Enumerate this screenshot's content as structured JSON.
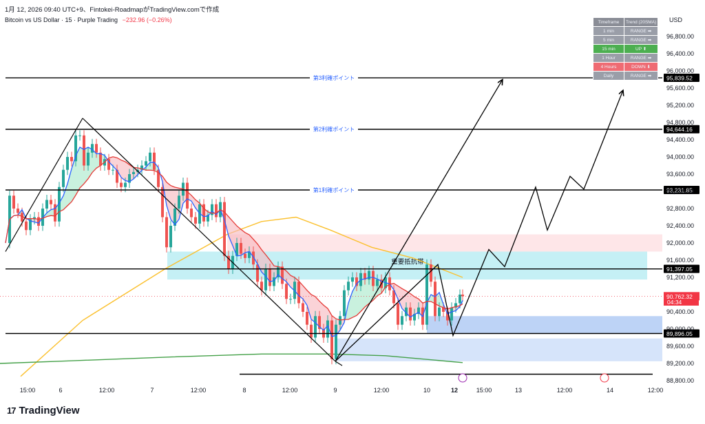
{
  "header": {
    "title": "1月 12, 2026 09:40 UTC+9、Fintokei-RoadmapがTradingView.comで作成",
    "symbol_line": "Bitcoin vs US Dollar · 15 · Purple Trading",
    "change": "−232.96 (−0.26%)",
    "currency": "USD"
  },
  "trend_table": {
    "headers": [
      "Timeframe",
      "Trend (20SMA)"
    ],
    "rows": [
      {
        "tf": "1 min",
        "trend": "RANGE ➡",
        "state": "range"
      },
      {
        "tf": "5 min",
        "trend": "RANGE ➡",
        "state": "range"
      },
      {
        "tf": "15 min",
        "trend": "UP ⬆",
        "state": "up"
      },
      {
        "tf": "1 Hour",
        "trend": "RANGE ➡",
        "state": "range"
      },
      {
        "tf": "4 Hours",
        "trend": "DOWN ⬇",
        "state": "down"
      },
      {
        "tf": "Daily",
        "trend": "RANGE ➡",
        "state": "range"
      }
    ]
  },
  "footer": {
    "brand": "TradingView",
    "brand_mark": "17"
  },
  "chart_data": {
    "type": "candlestick",
    "instrument": "Bitcoin vs US Dollar",
    "timeframe": "15",
    "ylim": [
      88800,
      97200
    ],
    "y_ticks": [
      88800,
      89200,
      89600,
      90000,
      90400,
      90800,
      91200,
      91600,
      92000,
      92400,
      92800,
      93200,
      93600,
      94000,
      94400,
      94800,
      95200,
      95600,
      96000,
      96400,
      96800
    ],
    "y_tick_labels": [
      "88,800.00",
      "89,200.00",
      "89,600.00",
      "90,000.00",
      "90,400.00",
      "90,800.00",
      "91,200.00",
      "91,600.00",
      "92,000.00",
      "92,400.00",
      "92,800.00",
      "93,200.00",
      "93,600.00",
      "94,000.00",
      "94,400.00",
      "94,800.00",
      "95,200.00",
      "95,600.00",
      "96,000.00",
      "96,400.00",
      "96,800.00"
    ],
    "x_ticks": [
      {
        "label": "15:00",
        "t": 40
      },
      {
        "label": "6",
        "t": 88
      },
      {
        "label": "12:00",
        "t": 155
      },
      {
        "label": "7",
        "t": 221
      },
      {
        "label": "12:00",
        "t": 288
      },
      {
        "label": "8",
        "t": 355
      },
      {
        "label": "12:00",
        "t": 421
      },
      {
        "label": "9",
        "t": 487
      },
      {
        "label": "12:00",
        "t": 554
      },
      {
        "label": "10",
        "t": 620
      },
      {
        "label": "12",
        "t": 660,
        "bold": true
      },
      {
        "label": "15:00",
        "t": 703
      },
      {
        "label": "13",
        "t": 753
      },
      {
        "label": "12:00",
        "t": 820
      },
      {
        "label": "14",
        "t": 886
      },
      {
        "label": "12:00",
        "t": 952
      }
    ],
    "levels": [
      {
        "name": "第3利確ポイント",
        "price": 95839.52,
        "label": "95,839.52"
      },
      {
        "name": "第2利確ポイント",
        "price": 94644.16,
        "label": "94,644.16"
      },
      {
        "name": "第1利確ポイント",
        "price": 93231.85,
        "label": "93,231.85"
      },
      {
        "name": "",
        "price": 91397.05,
        "label": "91,397.05"
      },
      {
        "name": "",
        "price": 89896.05,
        "label": "89,896.05"
      }
    ],
    "last_price": {
      "price": 90762.32,
      "label": "90,762.32",
      "countdown": "04:34"
    },
    "zones": [
      {
        "name": "重要抵抗帯",
        "from": 91150,
        "to": 91800,
        "t0": 243,
        "t1": 940,
        "color": "#b2ebf2"
      },
      {
        "name": "",
        "from": 91800,
        "to": 92200,
        "t0": 330,
        "t1": 962,
        "color": "#fddde0"
      },
      {
        "name": "",
        "from": 89250,
        "to": 89780,
        "t0": 490,
        "t1": 962,
        "color": "#c8dbf8"
      },
      {
        "name": "",
        "from": 89900,
        "to": 90300,
        "t0": 620,
        "t1": 962,
        "color": "#a7c4f3"
      }
    ],
    "zone_label": "重要抵抗帯",
    "close_series": {
      "t": [
        8,
        14,
        20,
        26,
        32,
        38,
        44,
        50,
        56,
        62,
        68,
        74,
        80,
        86,
        92,
        98,
        104,
        110,
        116,
        122,
        128,
        134,
        140,
        146,
        152,
        158,
        164,
        170,
        176,
        182,
        188,
        194,
        200,
        206,
        212,
        218,
        224,
        230,
        236,
        242,
        248,
        254,
        260,
        266,
        272,
        278,
        284,
        290,
        296,
        302,
        308,
        314,
        320,
        326,
        332,
        338,
        344,
        350,
        356,
        362,
        368,
        374,
        380,
        386,
        392,
        398,
        404,
        410,
        416,
        422,
        428,
        434,
        440,
        446,
        452,
        458,
        464,
        470,
        476,
        482,
        488,
        494,
        500,
        506,
        512,
        518,
        524,
        530,
        536,
        542,
        548,
        554,
        560,
        566,
        572,
        578,
        584,
        590,
        596,
        602,
        608,
        614,
        620,
        626,
        632,
        638,
        644,
        650,
        656,
        662,
        668,
        672
      ],
      "close": [
        92000,
        93100,
        92800,
        92700,
        92500,
        92300,
        92550,
        92600,
        92400,
        92800,
        93000,
        92900,
        92500,
        93300,
        93700,
        94000,
        93900,
        94500,
        94500,
        93800,
        94100,
        94300,
        94100,
        93800,
        93950,
        93700,
        93700,
        93400,
        93300,
        93400,
        93600,
        93650,
        93700,
        93800,
        93900,
        94100,
        93700,
        93300,
        92600,
        91900,
        92400,
        92800,
        93100,
        93400,
        92800,
        92600,
        92450,
        92900,
        92500,
        92650,
        92900,
        92600,
        92950,
        91700,
        91400,
        91700,
        92000,
        91750,
        91650,
        91800,
        91500,
        91100,
        90900,
        91400,
        91000,
        91200,
        91450,
        91050,
        90700,
        90700,
        91100,
        90600,
        90400,
        90100,
        89800,
        90300,
        90000,
        89800,
        90200,
        89300,
        90100,
        90300,
        90900,
        91100,
        91200,
        91000,
        91300,
        91150,
        91350,
        91000,
        91150,
        90950,
        91200,
        90900,
        90600,
        90100,
        90300,
        90500,
        90200,
        90350,
        90500,
        90100,
        91500,
        91100,
        90300,
        90500,
        90400,
        90200,
        90500,
        90600,
        90800,
        90762
      ]
    },
    "projection_path": [
      {
        "t": 487,
        "price": 89250
      },
      {
        "t": 636,
        "price": 91500
      },
      {
        "t": 658,
        "price": 89850
      },
      {
        "t": 710,
        "price": 91850
      },
      {
        "t": 733,
        "price": 91450
      },
      {
        "t": 778,
        "price": 93300
      },
      {
        "t": 795,
        "price": 92300
      },
      {
        "t": 828,
        "price": 93550
      },
      {
        "t": 848,
        "price": 93250
      },
      {
        "t": 905,
        "price": 95550
      }
    ],
    "projection_path_2": [
      {
        "t": 487,
        "price": 89250
      },
      {
        "t": 730,
        "price": 95800
      }
    ],
    "triangle_lines": [
      {
        "t0": 8,
        "p0": 91800,
        "t1": 120,
        "p1": 94900
      },
      {
        "t0": 120,
        "p0": 94900,
        "t1": 487,
        "p1": 89250
      },
      {
        "t0": 487,
        "p0": 89250,
        "t1": 497,
        "p1": 89150
      }
    ],
    "ma_fast_color": "#2962ff",
    "ma_mid_color": "#e53935",
    "ma_slow_color": "#fbc02d",
    "ma_long_color": "#43a047",
    "bull_color": "#26a69a",
    "bear_color": "#ef5350"
  }
}
